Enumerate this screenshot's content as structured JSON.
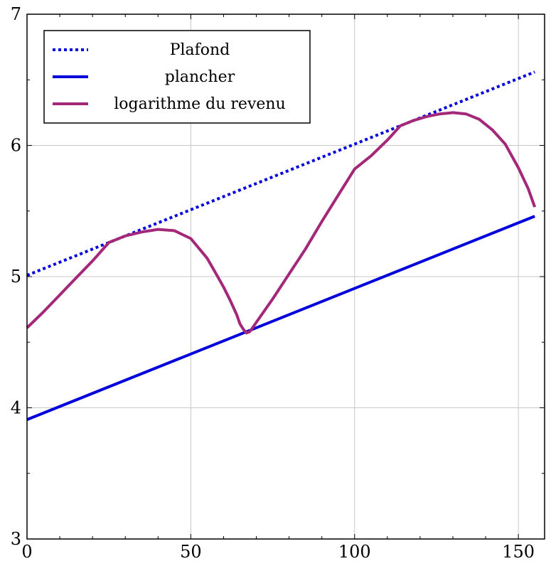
{
  "chart_data": {
    "type": "line",
    "title": "",
    "xlabel": "",
    "ylabel": "",
    "xlim": [
      0,
      158
    ],
    "ylim": [
      3,
      7
    ],
    "x_ticks": [
      0,
      50,
      100,
      150
    ],
    "y_ticks": [
      3,
      4,
      5,
      6,
      7
    ],
    "x_minor_step": 10,
    "y_minor_step": 0.5,
    "grid": true,
    "legend_position": "top-left",
    "series": [
      {
        "name": "Plafond",
        "color": "#0000dd",
        "style": "dotted",
        "x": [
          0,
          155
        ],
        "y": [
          5.01,
          6.56
        ]
      },
      {
        "name": "plancher",
        "color": "#0000dd",
        "style": "solid",
        "x": [
          0,
          155
        ],
        "y": [
          3.91,
          5.46
        ]
      },
      {
        "name": "logarithme du revenu",
        "color": "#a3287a",
        "style": "solid",
        "x": [
          0,
          5,
          10,
          15,
          20,
          25,
          30,
          35,
          40,
          45,
          50,
          55,
          58,
          60,
          62,
          64,
          65,
          66,
          67,
          68,
          75,
          80,
          85,
          90,
          95,
          100,
          105,
          110,
          114,
          118,
          122,
          126,
          130,
          134,
          138,
          142,
          146,
          150,
          153,
          155
        ],
        "y": [
          4.61,
          4.73,
          4.86,
          4.99,
          5.12,
          5.26,
          5.31,
          5.34,
          5.36,
          5.35,
          5.29,
          5.14,
          5.01,
          4.92,
          4.82,
          4.71,
          4.64,
          4.6,
          4.57,
          4.58,
          4.83,
          5.02,
          5.21,
          5.42,
          5.62,
          5.82,
          5.92,
          6.04,
          6.15,
          6.19,
          6.22,
          6.24,
          6.25,
          6.24,
          6.2,
          6.12,
          6.01,
          5.83,
          5.67,
          5.53
        ]
      }
    ]
  }
}
